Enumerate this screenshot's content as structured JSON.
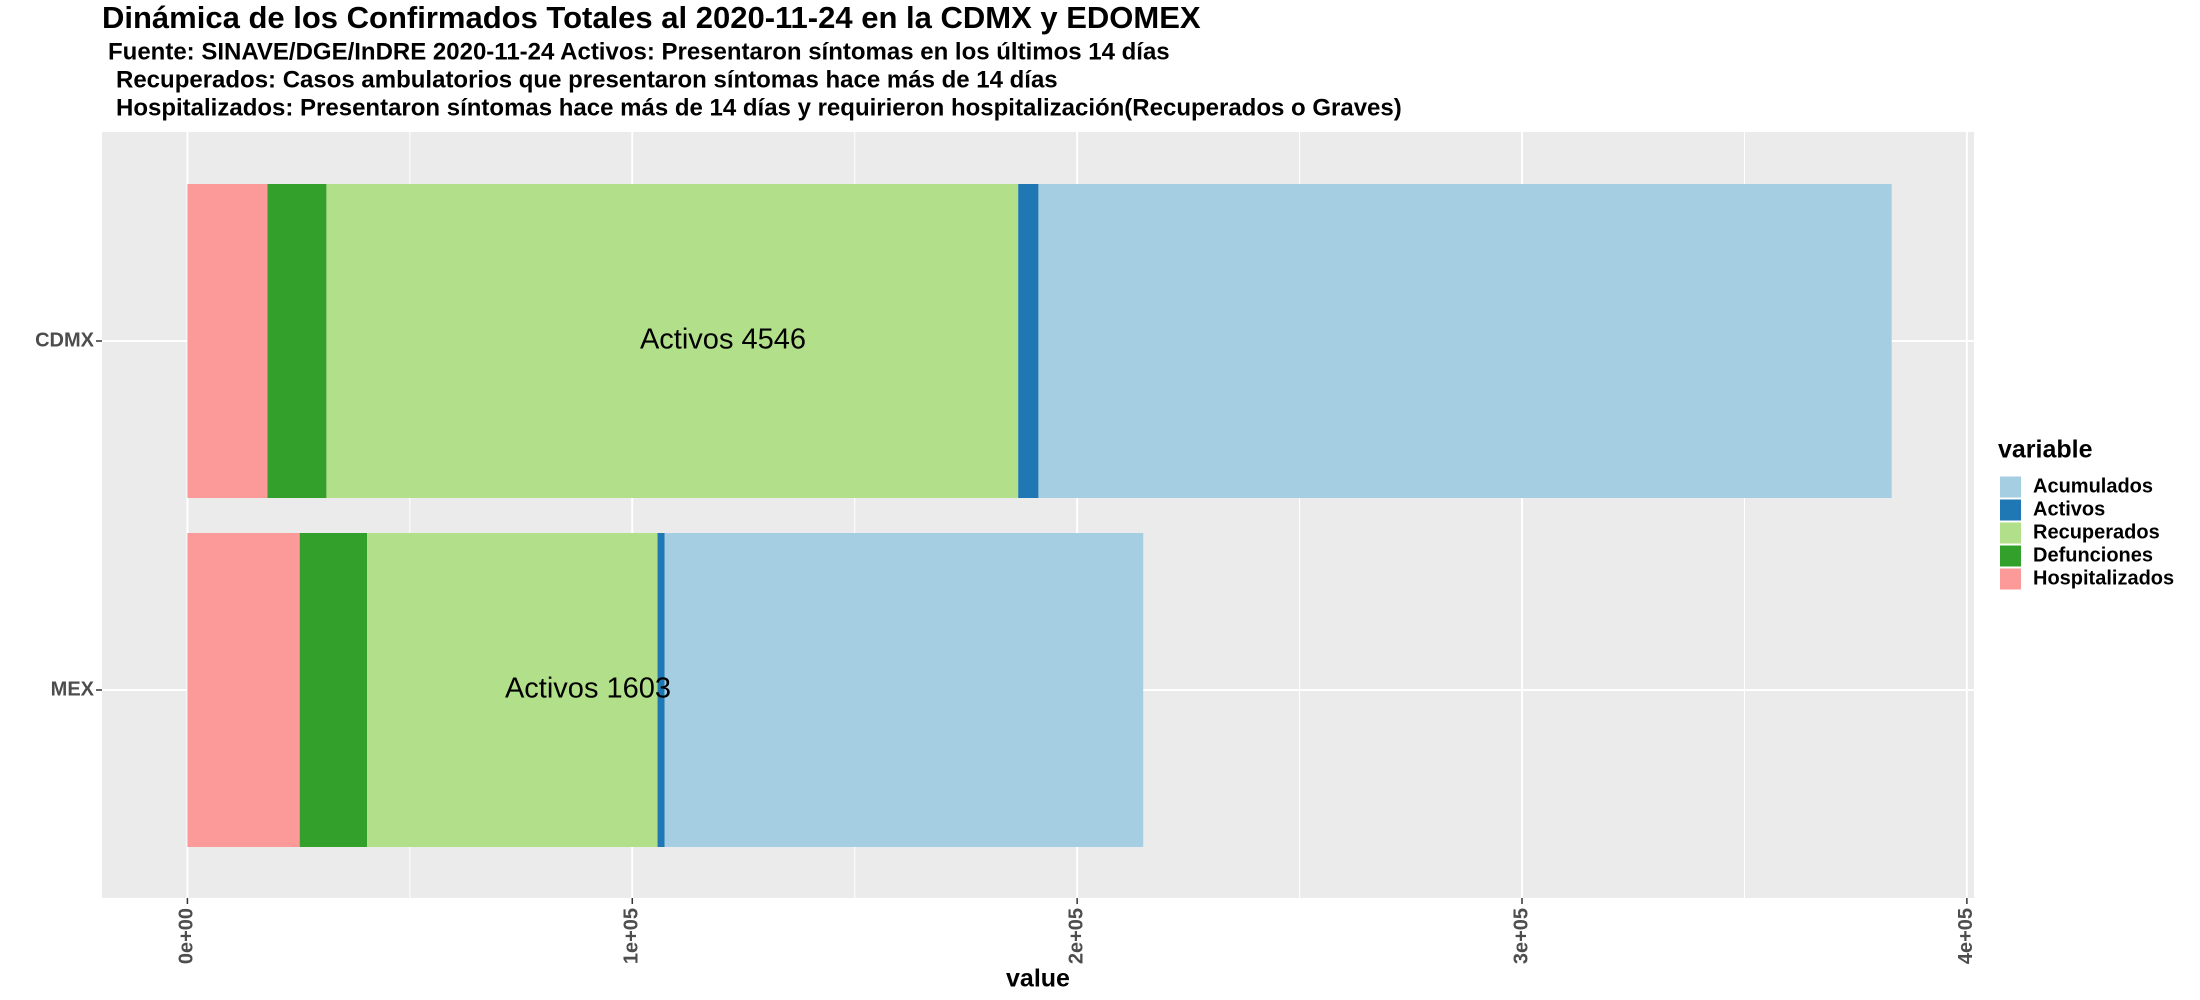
{
  "chart_data": {
    "type": "bar",
    "orientation": "horizontal",
    "stacked": true,
    "title": "Dinámica de los Confirmados Totales al 2020-11-24 en la CDMX  y EDOMEX",
    "subtitle": [
      "Fuente:  SINAVE/DGE/InDRE 2020-11-24  Activos: Presentaron síntomas en los últimos 14 días",
      "Recuperados: Casos ambulatorios que presentaron síntomas hace más de 14 días",
      "Hospitalizados: Presentaron síntomas hace más de 14 días y requirieron hospitalización(Recuperados o Graves)"
    ],
    "x_label": "value",
    "categories": [
      "CDMX",
      "MEX"
    ],
    "series": [
      {
        "name": "Hospitalizados",
        "color": "#fb9a99",
        "values": [
          18000,
          25240
        ]
      },
      {
        "name": "Defunciones",
        "color": "#33a02c",
        "values": [
          13250,
          15140
        ]
      },
      {
        "name": "Recuperados",
        "color": "#b2df8a",
        "values": [
          155500,
          65300
        ]
      },
      {
        "name": "Activos",
        "color": "#1f78b4",
        "values": [
          4546,
          1603
        ]
      },
      {
        "name": "Acumulados",
        "color": "#a6cee3",
        "values": [
          191800,
          107570
        ]
      }
    ],
    "annotations": [
      "Activos 4546",
      "Activos 1603"
    ],
    "legend_title": "variable",
    "legend": "right",
    "xlim": [
      -19200,
      401600
    ],
    "xticks": [
      {
        "value": 0,
        "label": "0e+00"
      },
      {
        "value": 100000,
        "label": "1e+05"
      },
      {
        "value": 200000,
        "label": "2e+05"
      },
      {
        "value": 300000,
        "label": "3e+05"
      },
      {
        "value": 400000,
        "label": "4e+05"
      }
    ],
    "grid": true
  }
}
